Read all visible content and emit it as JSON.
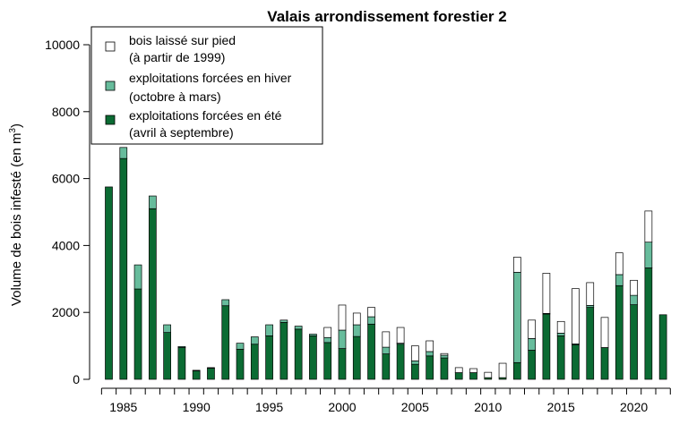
{
  "chart_data": {
    "type": "bar",
    "stacked": true,
    "title": "Valais arrondissement forestier 2",
    "ylabel": "Volume de bois infesté (en m",
    "ylabel_sup": "3",
    "ylabel_close": ")",
    "ylim": [
      0,
      10500
    ],
    "yticks": [
      "0",
      "2000",
      "4000",
      "6000",
      "8000",
      "10000"
    ],
    "ytick_values": [
      0,
      2000,
      4000,
      6000,
      8000,
      10000
    ],
    "xticks": [
      "1985",
      "1990",
      "1995",
      "2000",
      "2005",
      "2010",
      "2015",
      "2020"
    ],
    "xtick_values": [
      1985,
      1990,
      1995,
      2000,
      2005,
      2010,
      2015,
      2020
    ],
    "x": [
      1984,
      1985,
      1986,
      1987,
      1988,
      1989,
      1990,
      1991,
      1992,
      1993,
      1994,
      1995,
      1996,
      1997,
      1998,
      1999,
      2000,
      2001,
      2002,
      2003,
      2004,
      2005,
      2006,
      2007,
      2008,
      2009,
      2010,
      2011,
      2012,
      2013,
      2014,
      2015,
      2016,
      2017,
      2018,
      2019,
      2020,
      2021,
      2022
    ],
    "legend_position": "top-left",
    "series": [
      {
        "name": "exploitations forcées en été\n(avril à septembre)",
        "color": "#0b6b33",
        "values": [
          5750,
          6600,
          2700,
          5100,
          1400,
          950,
          250,
          330,
          2200,
          900,
          1050,
          1300,
          1700,
          1500,
          1300,
          1100,
          920,
          1280,
          1650,
          760,
          1050,
          450,
          700,
          640,
          200,
          200,
          50,
          50,
          500,
          870,
          1950,
          1300,
          1030,
          2150,
          950,
          2800,
          2230,
          3330,
          1930
        ]
      },
      {
        "name": "exploitations forcées en hiver\n(octobre à mars)",
        "color": "#67bc9c",
        "values": [
          0,
          330,
          720,
          380,
          230,
          30,
          20,
          20,
          180,
          180,
          220,
          330,
          70,
          90,
          50,
          150,
          550,
          350,
          220,
          200,
          30,
          100,
          130,
          80,
          0,
          0,
          0,
          0,
          2700,
          350,
          20,
          80,
          30,
          60,
          0,
          330,
          280,
          770,
          0
        ]
      },
      {
        "name": "bois laissé sur pied\n(à partir de 1999)",
        "color": "#ffffff",
        "values": [
          0,
          0,
          0,
          0,
          0,
          0,
          0,
          0,
          0,
          0,
          0,
          0,
          0,
          0,
          0,
          300,
          750,
          350,
          280,
          460,
          470,
          450,
          320,
          50,
          150,
          120,
          160,
          430,
          450,
          550,
          1200,
          350,
          1650,
          680,
          900,
          650,
          450,
          930,
          0
        ]
      }
    ]
  }
}
